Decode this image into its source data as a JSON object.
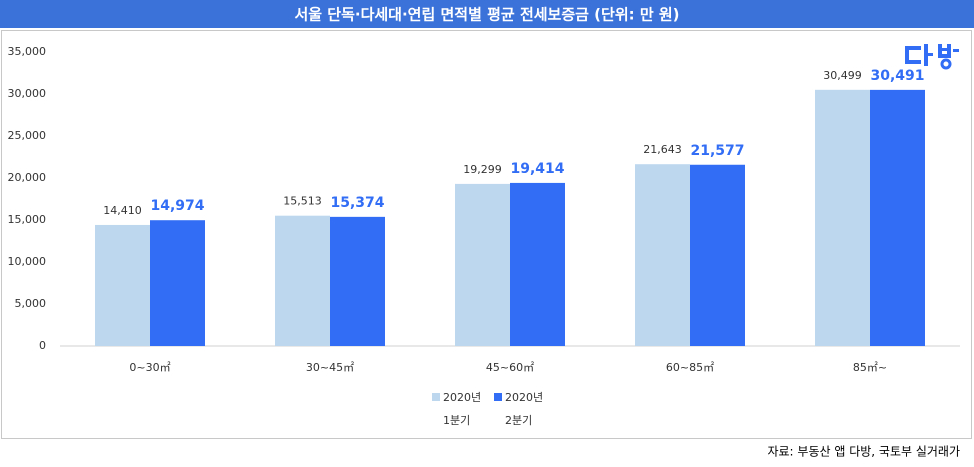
{
  "chart_data": {
    "type": "bar",
    "title": "서울 단독·다세대·연립 면적별 평균 전세보증금 (단위:  만 원)",
    "source": "자료: 부동산 앱 다방, 국토부 실거래가",
    "categories": [
      "0~30㎡",
      "30~45㎡",
      "45~60㎡",
      "60~85㎡",
      "85㎡~"
    ],
    "series": [
      {
        "name": "2020년",
        "period": "1분기",
        "color": "#bdd7ee",
        "values": [
          14410,
          15513,
          19299,
          21643,
          30499
        ],
        "value_labels": [
          "14,410",
          "15,513",
          "19,299",
          "21,643",
          "30,499"
        ]
      },
      {
        "name": "2020년",
        "period": "2분기",
        "color": "#316df5",
        "values": [
          14974,
          15374,
          19414,
          21577,
          30491
        ],
        "value_labels": [
          "14,974",
          "15,374",
          "19,414",
          "21,577",
          "30,491"
        ]
      }
    ],
    "ylim": [
      0,
      35000
    ],
    "yticks": [
      0,
      {
        "value": 5000,
        "label": "5,000"
      },
      {
        "value": 10000,
        "label": "10,000"
      },
      {
        "value": 15000,
        "label": "15,000"
      },
      {
        "value": 20000,
        "label": "20,000"
      },
      {
        "value": 25000,
        "label": "25,000"
      },
      {
        "value": 30000,
        "label": "30,000"
      },
      {
        "value": 35000,
        "label": "35,000"
      }
    ],
    "grid": false
  }
}
